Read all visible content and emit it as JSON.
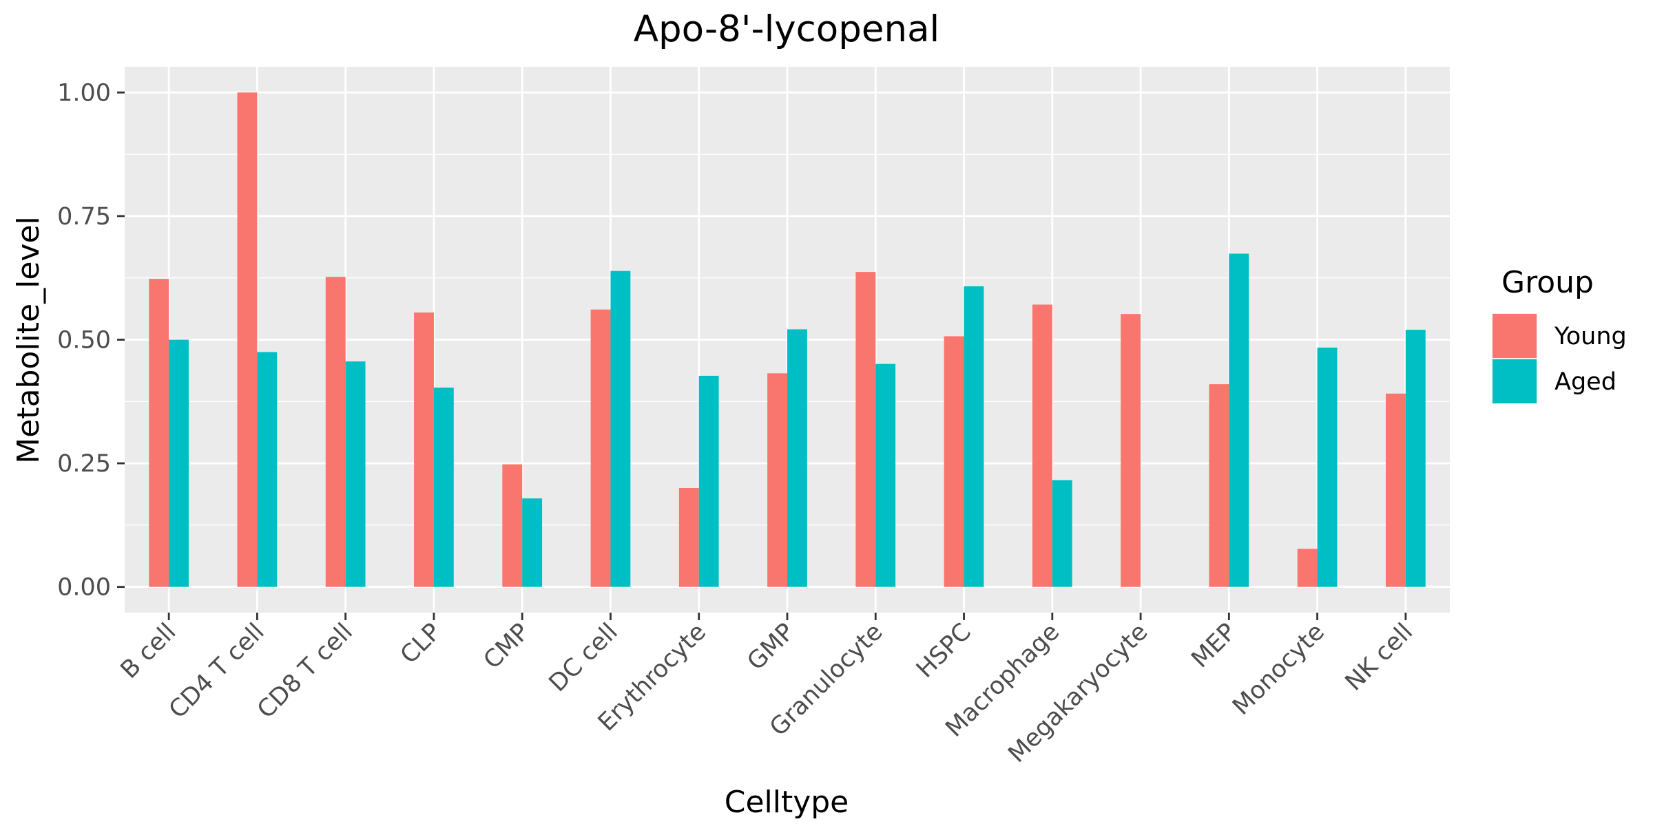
{
  "chart_data": {
    "type": "bar",
    "title": "Apo-8'-lycopenal",
    "xlabel": "Celltype",
    "ylabel": "Metabolite_level",
    "categories": [
      "B cell",
      "CD4 T cell",
      "CD8 T cell",
      "CLP",
      "CMP",
      "DC cell",
      "Erythrocyte",
      "GMP",
      "Granulocyte",
      "HSPC",
      "Macrophage",
      "Megakaryocyte",
      "MEP",
      "Monocyte",
      "NK cell"
    ],
    "series": [
      {
        "name": "Young",
        "color": "#F8766D",
        "values": [
          0.623,
          1.0,
          0.627,
          0.555,
          0.248,
          0.561,
          0.2,
          0.432,
          0.637,
          0.507,
          0.571,
          0.552,
          0.41,
          0.077,
          0.391
        ]
      },
      {
        "name": "Aged",
        "color": "#00BFC4",
        "values": [
          0.5,
          0.475,
          0.456,
          0.403,
          0.179,
          0.639,
          0.427,
          0.521,
          0.451,
          0.608,
          0.216,
          null,
          0.674,
          0.484,
          0.52
        ]
      }
    ],
    "ylim": [
      -0.052,
      1.052
    ],
    "yticks": [
      0.0,
      0.25,
      0.5,
      0.75,
      1.0
    ],
    "ytick_labels": [
      "0.00",
      "0.25",
      "0.50",
      "0.75",
      "1.00"
    ],
    "grid": true,
    "legend": {
      "title": "Group",
      "position": "right"
    },
    "panel_background": "#EBEBEB",
    "grid_color": "#FFFFFF"
  }
}
